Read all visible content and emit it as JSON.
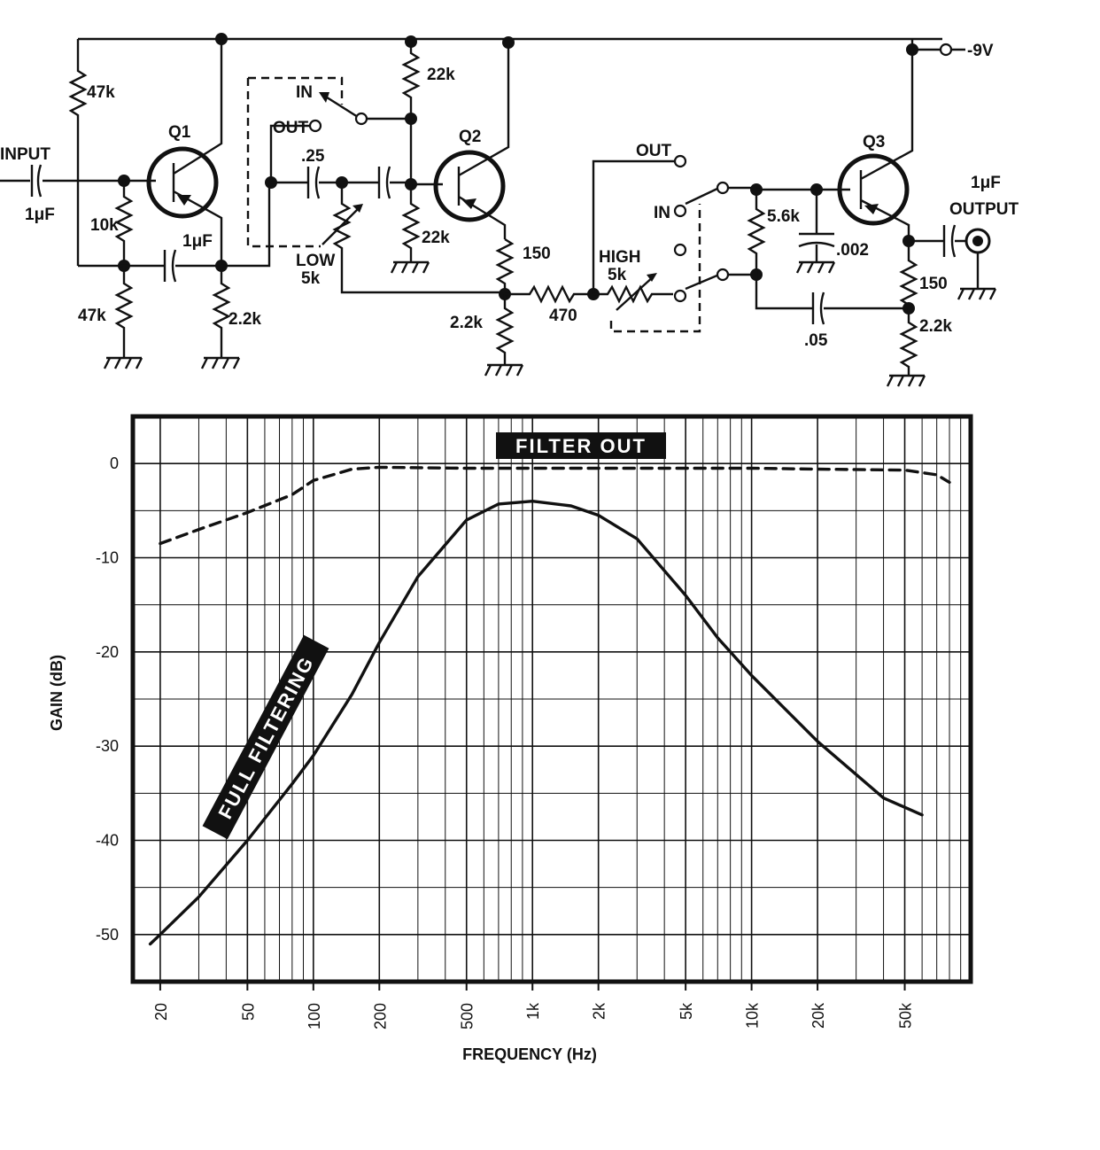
{
  "schematic": {
    "supply_label": "-9V",
    "input_label": "INPUT",
    "output_label": "OUTPUT",
    "output_cap": "1μF",
    "transistors": [
      "Q1",
      "Q2",
      "Q3"
    ],
    "components": {
      "r_47k_top": "47k",
      "r_10k": "10k",
      "r_47k_bottom": "47k",
      "c_in": "1μF",
      "c_q1": "1μF",
      "r_2_2k_q1": "2.2k",
      "sw1_in": "IN",
      "sw1_out": "OUT",
      "c_025": ".25",
      "pot_low": "LOW",
      "pot_low_val": "5k",
      "r_22k_top": "22k",
      "r_22k_bottom": "22k",
      "r_150_q2": "150",
      "r_2_2k_q2": "2.2k",
      "r_470": "470",
      "pot_high": "HIGH",
      "pot_high_val": "5k",
      "sw2_out": "OUT",
      "sw2_in": "IN",
      "r_5_6k": "5.6k",
      "c_002": ".002",
      "c_05": ".05",
      "r_150_q3": "150",
      "r_2_2k_q3": "2.2k"
    }
  },
  "chart_data": {
    "type": "line",
    "xscale": "log",
    "xlabel": "FREQUENCY (Hz)",
    "ylabel": "GAIN (dB)",
    "xlim": [
      15,
      100000
    ],
    "ylim": [
      -55,
      5
    ],
    "x_ticks": [
      {
        "v": 20,
        "label": "20"
      },
      {
        "v": 50,
        "label": "50"
      },
      {
        "v": 100,
        "label": "100"
      },
      {
        "v": 200,
        "label": "200"
      },
      {
        "v": 500,
        "label": "500"
      },
      {
        "v": 1000,
        "label": "1k"
      },
      {
        "v": 2000,
        "label": "2k"
      },
      {
        "v": 5000,
        "label": "5k"
      },
      {
        "v": 10000,
        "label": "10k"
      },
      {
        "v": 20000,
        "label": "20k"
      },
      {
        "v": 50000,
        "label": "50k"
      }
    ],
    "y_ticks": [
      {
        "v": 0,
        "label": "0"
      },
      {
        "v": -10,
        "label": "-10"
      },
      {
        "v": -20,
        "label": "-20"
      },
      {
        "v": -30,
        "label": "-30"
      },
      {
        "v": -40,
        "label": "-40"
      },
      {
        "v": -50,
        "label": "-50"
      }
    ],
    "series": [
      {
        "name": "FILTER OUT",
        "style": "dashed",
        "x": [
          20,
          30,
          50,
          80,
          100,
          150,
          200,
          500,
          1000,
          2000,
          5000,
          10000,
          20000,
          50000,
          70000,
          80000
        ],
        "y": [
          -8.5,
          -7,
          -5.2,
          -3.3,
          -1.8,
          -0.6,
          -0.4,
          -0.5,
          -0.5,
          -0.5,
          -0.5,
          -0.5,
          -0.6,
          -0.7,
          -1.2,
          -2
        ]
      },
      {
        "name": "FULL FILTERING",
        "style": "solid",
        "x": [
          18,
          20,
          30,
          50,
          80,
          100,
          150,
          200,
          300,
          500,
          700,
          1000,
          1500,
          2000,
          3000,
          5000,
          7000,
          10000,
          20000,
          40000,
          60000
        ],
        "y": [
          -51,
          -50,
          -46,
          -40,
          -34,
          -31,
          -24.5,
          -19,
          -12,
          -6,
          -4.3,
          -4,
          -4.5,
          -5.5,
          -8,
          -14,
          -18.5,
          -22.5,
          -29.5,
          -35.5,
          -37.3
        ]
      }
    ]
  }
}
